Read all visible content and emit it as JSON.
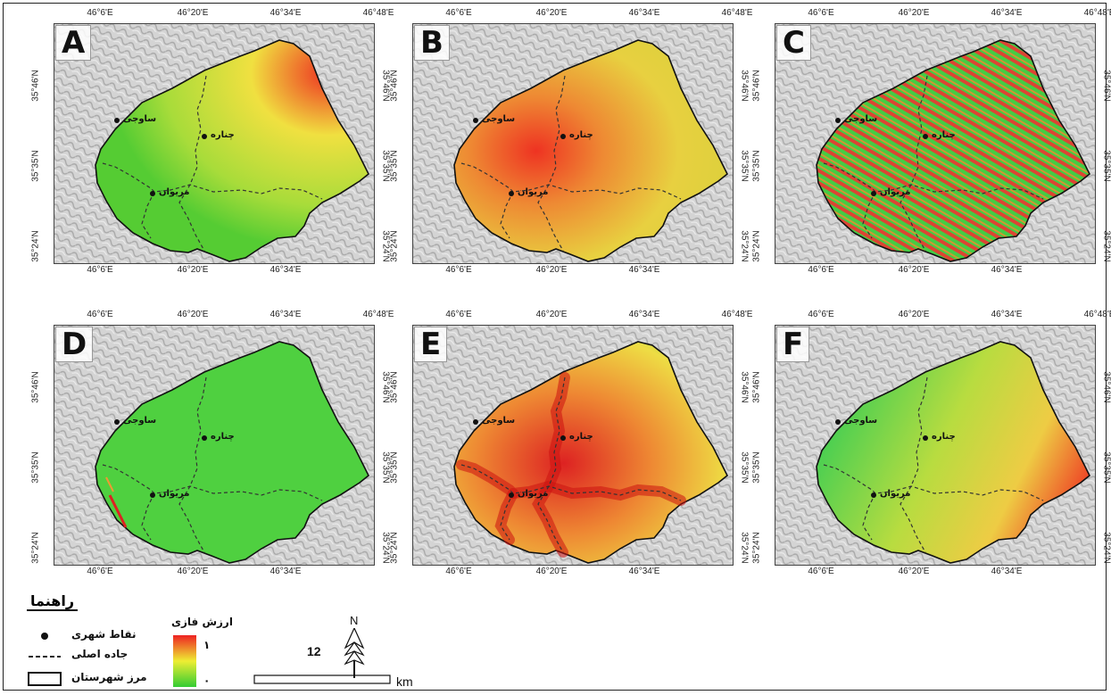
{
  "panels": [
    {
      "letter": "A"
    },
    {
      "letter": "B"
    },
    {
      "letter": "C"
    },
    {
      "letter": "D"
    },
    {
      "letter": "E"
    },
    {
      "letter": "F"
    }
  ],
  "axes": {
    "lon_ticks": [
      "46°6'E",
      "46°20'E",
      "46°34'E",
      "46°48'E"
    ],
    "lon_ticks_bottom": [
      "46°6'E",
      "46°20'E",
      "46°34'E"
    ],
    "lat_ticks": [
      "35°46'N",
      "35°35'N",
      "35°24'N"
    ]
  },
  "cities": {
    "sarvabad": "ساوجی",
    "chenareh": "چناره",
    "marivan": "مریوان"
  },
  "legend": {
    "title": "راهنما",
    "city_points": "نقاط شهری",
    "main_road": "جاده اصلی",
    "county_boundary": "مرز شهرستان",
    "fuzzy_value": "ارزش فازی",
    "high": "۱",
    "low": "۰"
  },
  "scale": {
    "value": "12",
    "unit": "km"
  },
  "north": "N",
  "colors": {
    "low": "#33cc33",
    "mid": "#eeee44",
    "high": "#ee3322",
    "hillshade": "#c8c8c8"
  }
}
